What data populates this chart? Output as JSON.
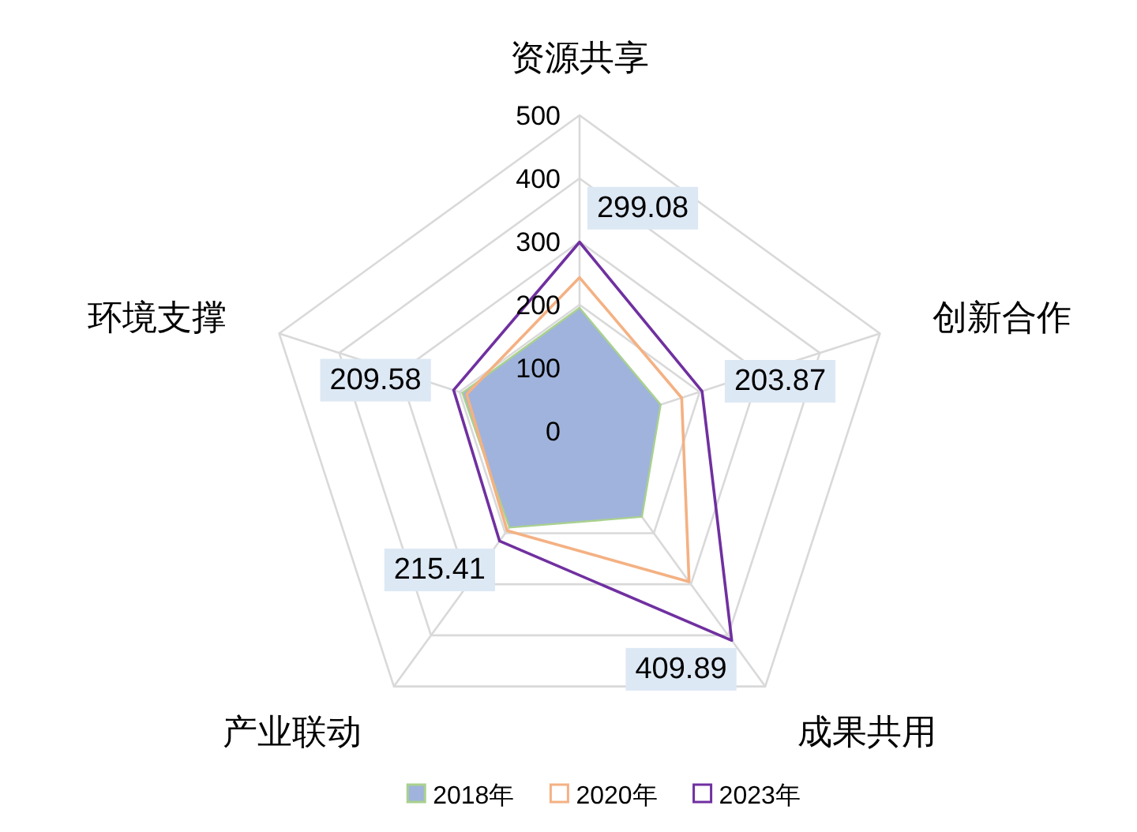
{
  "chart_data": {
    "type": "radar",
    "categories": [
      "资源共享",
      "创新合作",
      "成果共用",
      "产业联动",
      "环境支撑"
    ],
    "series": [
      {
        "name": "2018年",
        "type": "area",
        "color": "#a0b3dc",
        "values": [
          195,
          135,
          168,
          189,
          195
        ]
      },
      {
        "name": "2020年",
        "color": "#f4b183",
        "values": [
          243,
          170,
          295,
          195,
          188
        ]
      },
      {
        "name": "2023年",
        "color": "#7030a0",
        "values": [
          299.08,
          203.87,
          409.89,
          215.41,
          209.58
        ],
        "value_labels": [
          "299.08",
          "203.87",
          "409.89",
          "215.41",
          "209.58"
        ]
      }
    ],
    "ylim": [
      0,
      500
    ],
    "yticks": [
      0,
      100,
      200,
      300,
      400,
      500
    ],
    "grid": true,
    "legend": "bottom"
  }
}
